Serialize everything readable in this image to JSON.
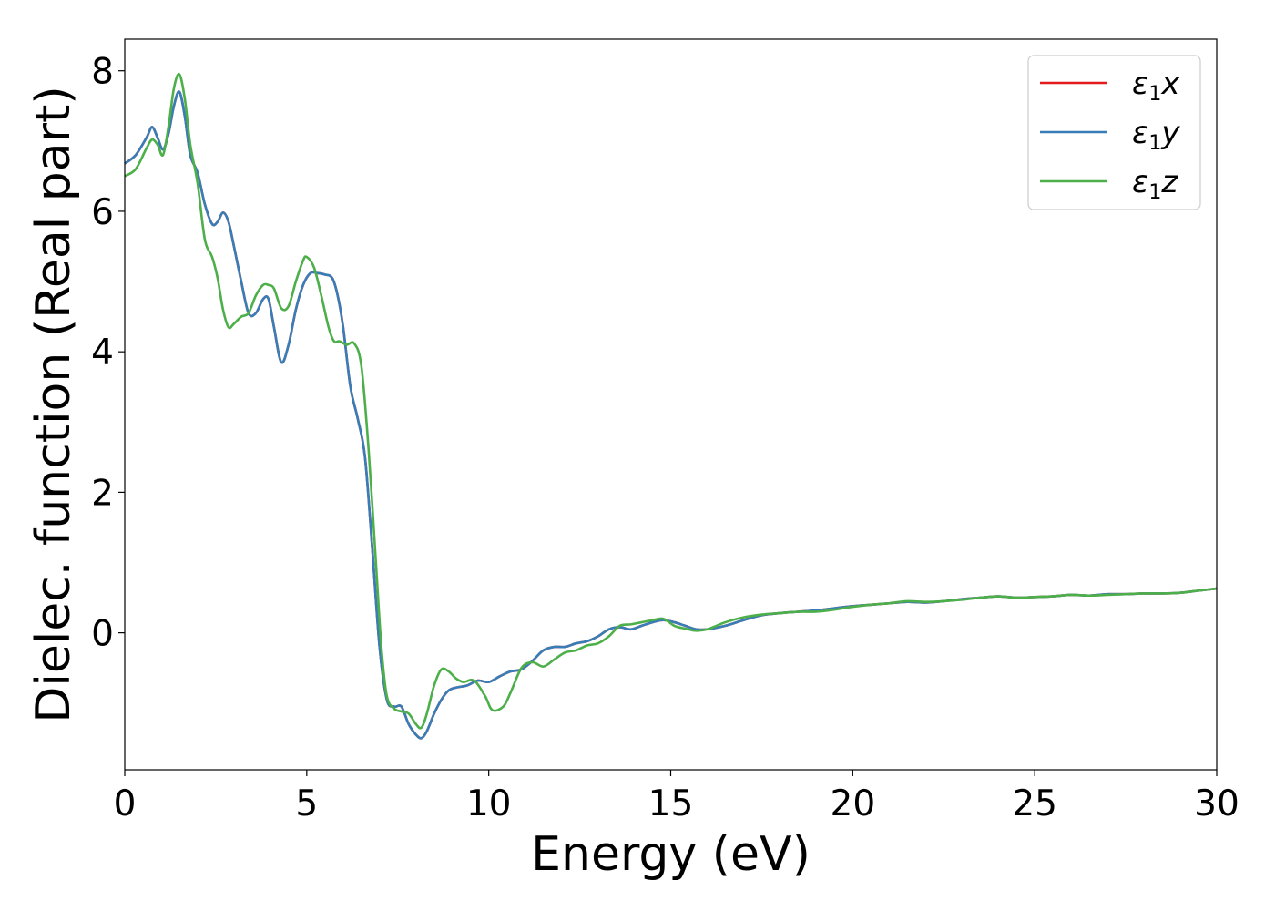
{
  "chart_data": {
    "type": "line",
    "xlabel": "Energy (eV)",
    "ylabel": "Dielec. function (Real part)",
    "xlim": [
      0,
      30
    ],
    "ylim": [
      -1.95,
      8.45
    ],
    "xticks": [
      0,
      5,
      10,
      15,
      20,
      25,
      30
    ],
    "yticks": [
      0,
      2,
      4,
      6,
      8
    ],
    "grid": false,
    "legend_position": "top-right",
    "series": [
      {
        "name": "ε1x",
        "legend_base": "ε",
        "legend_sub": "1",
        "legend_var": "x",
        "color": "#e41a1c",
        "x": [
          0,
          0.3,
          0.6,
          0.75,
          0.9,
          1.05,
          1.2,
          1.35,
          1.5,
          1.65,
          1.8,
          2.0,
          2.2,
          2.4,
          2.55,
          2.7,
          2.85,
          3.0,
          3.2,
          3.4,
          3.6,
          3.8,
          3.95,
          4.1,
          4.3,
          4.5,
          4.7,
          4.9,
          5.1,
          5.3,
          5.5,
          5.7,
          5.85,
          6.0,
          6.2,
          6.4,
          6.6,
          6.8,
          7.0,
          7.2,
          7.4,
          7.6,
          7.8,
          8.0,
          8.15,
          8.3,
          8.5,
          8.7,
          8.9,
          9.1,
          9.4,
          9.7,
          10.0,
          10.3,
          10.6,
          10.9,
          11.2,
          11.5,
          11.8,
          12.1,
          12.4,
          12.7,
          13.0,
          13.3,
          13.6,
          13.9,
          14.2,
          14.5,
          14.8,
          15.1,
          15.4,
          15.7,
          16.0,
          16.5,
          17.0,
          17.5,
          18.0,
          18.5,
          19.0,
          19.5,
          20.0,
          20.5,
          21.0,
          21.5,
          22.0,
          22.5,
          23.0,
          23.5,
          24.0,
          24.5,
          25.0,
          25.5,
          26.0,
          26.5,
          27.0,
          27.5,
          28.0,
          28.5,
          29.0,
          29.5,
          30.0
        ],
        "y": [
          6.68,
          6.8,
          7.05,
          7.2,
          7.05,
          6.88,
          7.1,
          7.5,
          7.7,
          7.35,
          6.8,
          6.55,
          6.1,
          5.82,
          5.85,
          5.98,
          5.85,
          5.5,
          5.0,
          4.55,
          4.55,
          4.75,
          4.75,
          4.35,
          3.85,
          4.1,
          4.6,
          4.95,
          5.12,
          5.12,
          5.1,
          5.05,
          4.8,
          4.35,
          3.5,
          3.05,
          2.5,
          1.2,
          -0.2,
          -0.95,
          -1.05,
          -1.05,
          -1.3,
          -1.45,
          -1.5,
          -1.4,
          -1.15,
          -0.95,
          -0.82,
          -0.78,
          -0.75,
          -0.68,
          -0.7,
          -0.62,
          -0.55,
          -0.52,
          -0.4,
          -0.25,
          -0.2,
          -0.2,
          -0.15,
          -0.12,
          -0.05,
          0.05,
          0.08,
          0.05,
          0.1,
          0.15,
          0.18,
          0.15,
          0.1,
          0.05,
          0.05,
          0.1,
          0.18,
          0.25,
          0.28,
          0.3,
          0.32,
          0.35,
          0.38,
          0.4,
          0.42,
          0.44,
          0.43,
          0.45,
          0.48,
          0.5,
          0.52,
          0.5,
          0.51,
          0.52,
          0.54,
          0.53,
          0.55,
          0.55,
          0.56,
          0.56,
          0.57,
          0.6,
          0.63
        ]
      },
      {
        "name": "ε1y",
        "legend_base": "ε",
        "legend_sub": "1",
        "legend_var": "y",
        "color": "#377eb8",
        "x": [
          0,
          0.3,
          0.6,
          0.75,
          0.9,
          1.05,
          1.2,
          1.35,
          1.5,
          1.65,
          1.8,
          2.0,
          2.2,
          2.4,
          2.55,
          2.7,
          2.85,
          3.0,
          3.2,
          3.4,
          3.6,
          3.8,
          3.95,
          4.1,
          4.3,
          4.5,
          4.7,
          4.9,
          5.1,
          5.3,
          5.5,
          5.7,
          5.85,
          6.0,
          6.2,
          6.4,
          6.6,
          6.8,
          7.0,
          7.2,
          7.4,
          7.6,
          7.8,
          8.0,
          8.15,
          8.3,
          8.5,
          8.7,
          8.9,
          9.1,
          9.4,
          9.7,
          10.0,
          10.3,
          10.6,
          10.9,
          11.2,
          11.5,
          11.8,
          12.1,
          12.4,
          12.7,
          13.0,
          13.3,
          13.6,
          13.9,
          14.2,
          14.5,
          14.8,
          15.1,
          15.4,
          15.7,
          16.0,
          16.5,
          17.0,
          17.5,
          18.0,
          18.5,
          19.0,
          19.5,
          20.0,
          20.5,
          21.0,
          21.5,
          22.0,
          22.5,
          23.0,
          23.5,
          24.0,
          24.5,
          25.0,
          25.5,
          26.0,
          26.5,
          27.0,
          27.5,
          28.0,
          28.5,
          29.0,
          29.5,
          30.0
        ],
        "y": [
          6.68,
          6.8,
          7.05,
          7.2,
          7.05,
          6.88,
          7.1,
          7.5,
          7.7,
          7.35,
          6.8,
          6.55,
          6.1,
          5.82,
          5.85,
          5.98,
          5.85,
          5.5,
          5.0,
          4.55,
          4.55,
          4.75,
          4.75,
          4.35,
          3.85,
          4.1,
          4.6,
          4.95,
          5.12,
          5.12,
          5.1,
          5.05,
          4.8,
          4.35,
          3.5,
          3.05,
          2.5,
          1.2,
          -0.2,
          -0.95,
          -1.05,
          -1.05,
          -1.3,
          -1.45,
          -1.5,
          -1.4,
          -1.15,
          -0.95,
          -0.82,
          -0.78,
          -0.75,
          -0.68,
          -0.7,
          -0.62,
          -0.55,
          -0.52,
          -0.4,
          -0.25,
          -0.2,
          -0.2,
          -0.15,
          -0.12,
          -0.05,
          0.05,
          0.08,
          0.05,
          0.1,
          0.15,
          0.18,
          0.15,
          0.1,
          0.05,
          0.05,
          0.1,
          0.18,
          0.25,
          0.28,
          0.3,
          0.32,
          0.35,
          0.38,
          0.4,
          0.42,
          0.44,
          0.43,
          0.45,
          0.48,
          0.5,
          0.52,
          0.5,
          0.51,
          0.52,
          0.54,
          0.53,
          0.55,
          0.55,
          0.56,
          0.56,
          0.57,
          0.6,
          0.63
        ]
      },
      {
        "name": "ε1z",
        "legend_base": "ε",
        "legend_sub": "1",
        "legend_var": "z",
        "color": "#4daf4a",
        "x": [
          0,
          0.3,
          0.6,
          0.75,
          0.9,
          1.05,
          1.2,
          1.35,
          1.5,
          1.65,
          1.8,
          2.0,
          2.2,
          2.4,
          2.55,
          2.7,
          2.85,
          3.0,
          3.2,
          3.4,
          3.6,
          3.8,
          3.95,
          4.1,
          4.3,
          4.5,
          4.7,
          4.9,
          5.0,
          5.2,
          5.4,
          5.6,
          5.75,
          5.9,
          6.1,
          6.3,
          6.5,
          6.7,
          6.9,
          7.05,
          7.2,
          7.4,
          7.6,
          7.8,
          8.0,
          8.15,
          8.3,
          8.5,
          8.7,
          8.9,
          9.1,
          9.3,
          9.6,
          9.9,
          10.1,
          10.4,
          10.6,
          10.9,
          11.2,
          11.5,
          11.8,
          12.1,
          12.4,
          12.7,
          13.0,
          13.3,
          13.6,
          13.9,
          14.2,
          14.5,
          14.8,
          15.1,
          15.4,
          15.7,
          16.0,
          16.5,
          17.0,
          17.5,
          18.0,
          18.5,
          19.0,
          19.5,
          20.0,
          20.5,
          21.0,
          21.5,
          22.0,
          22.5,
          23.0,
          23.5,
          24.0,
          24.5,
          25.0,
          25.5,
          26.0,
          26.5,
          27.0,
          27.5,
          28.0,
          28.5,
          29.0,
          29.5,
          30.0
        ],
        "y": [
          6.5,
          6.6,
          6.9,
          7.02,
          6.95,
          6.8,
          7.2,
          7.75,
          7.95,
          7.6,
          6.95,
          6.4,
          5.6,
          5.35,
          5.05,
          4.6,
          4.35,
          4.4,
          4.5,
          4.55,
          4.8,
          4.95,
          4.95,
          4.9,
          4.62,
          4.65,
          5.0,
          5.3,
          5.35,
          5.2,
          4.8,
          4.35,
          4.15,
          4.15,
          4.1,
          4.12,
          3.8,
          2.6,
          1.0,
          -0.2,
          -0.9,
          -1.08,
          -1.12,
          -1.15,
          -1.3,
          -1.35,
          -1.15,
          -0.75,
          -0.52,
          -0.55,
          -0.65,
          -0.7,
          -0.68,
          -0.9,
          -1.1,
          -1.05,
          -0.85,
          -0.5,
          -0.42,
          -0.48,
          -0.38,
          -0.28,
          -0.25,
          -0.18,
          -0.15,
          -0.05,
          0.1,
          0.12,
          0.15,
          0.18,
          0.2,
          0.1,
          0.06,
          0.03,
          0.05,
          0.15,
          0.22,
          0.26,
          0.28,
          0.3,
          0.3,
          0.33,
          0.37,
          0.4,
          0.42,
          0.45,
          0.44,
          0.45,
          0.47,
          0.5,
          0.52,
          0.5,
          0.51,
          0.52,
          0.54,
          0.53,
          0.54,
          0.55,
          0.56,
          0.56,
          0.57,
          0.6,
          0.63
        ]
      }
    ]
  }
}
